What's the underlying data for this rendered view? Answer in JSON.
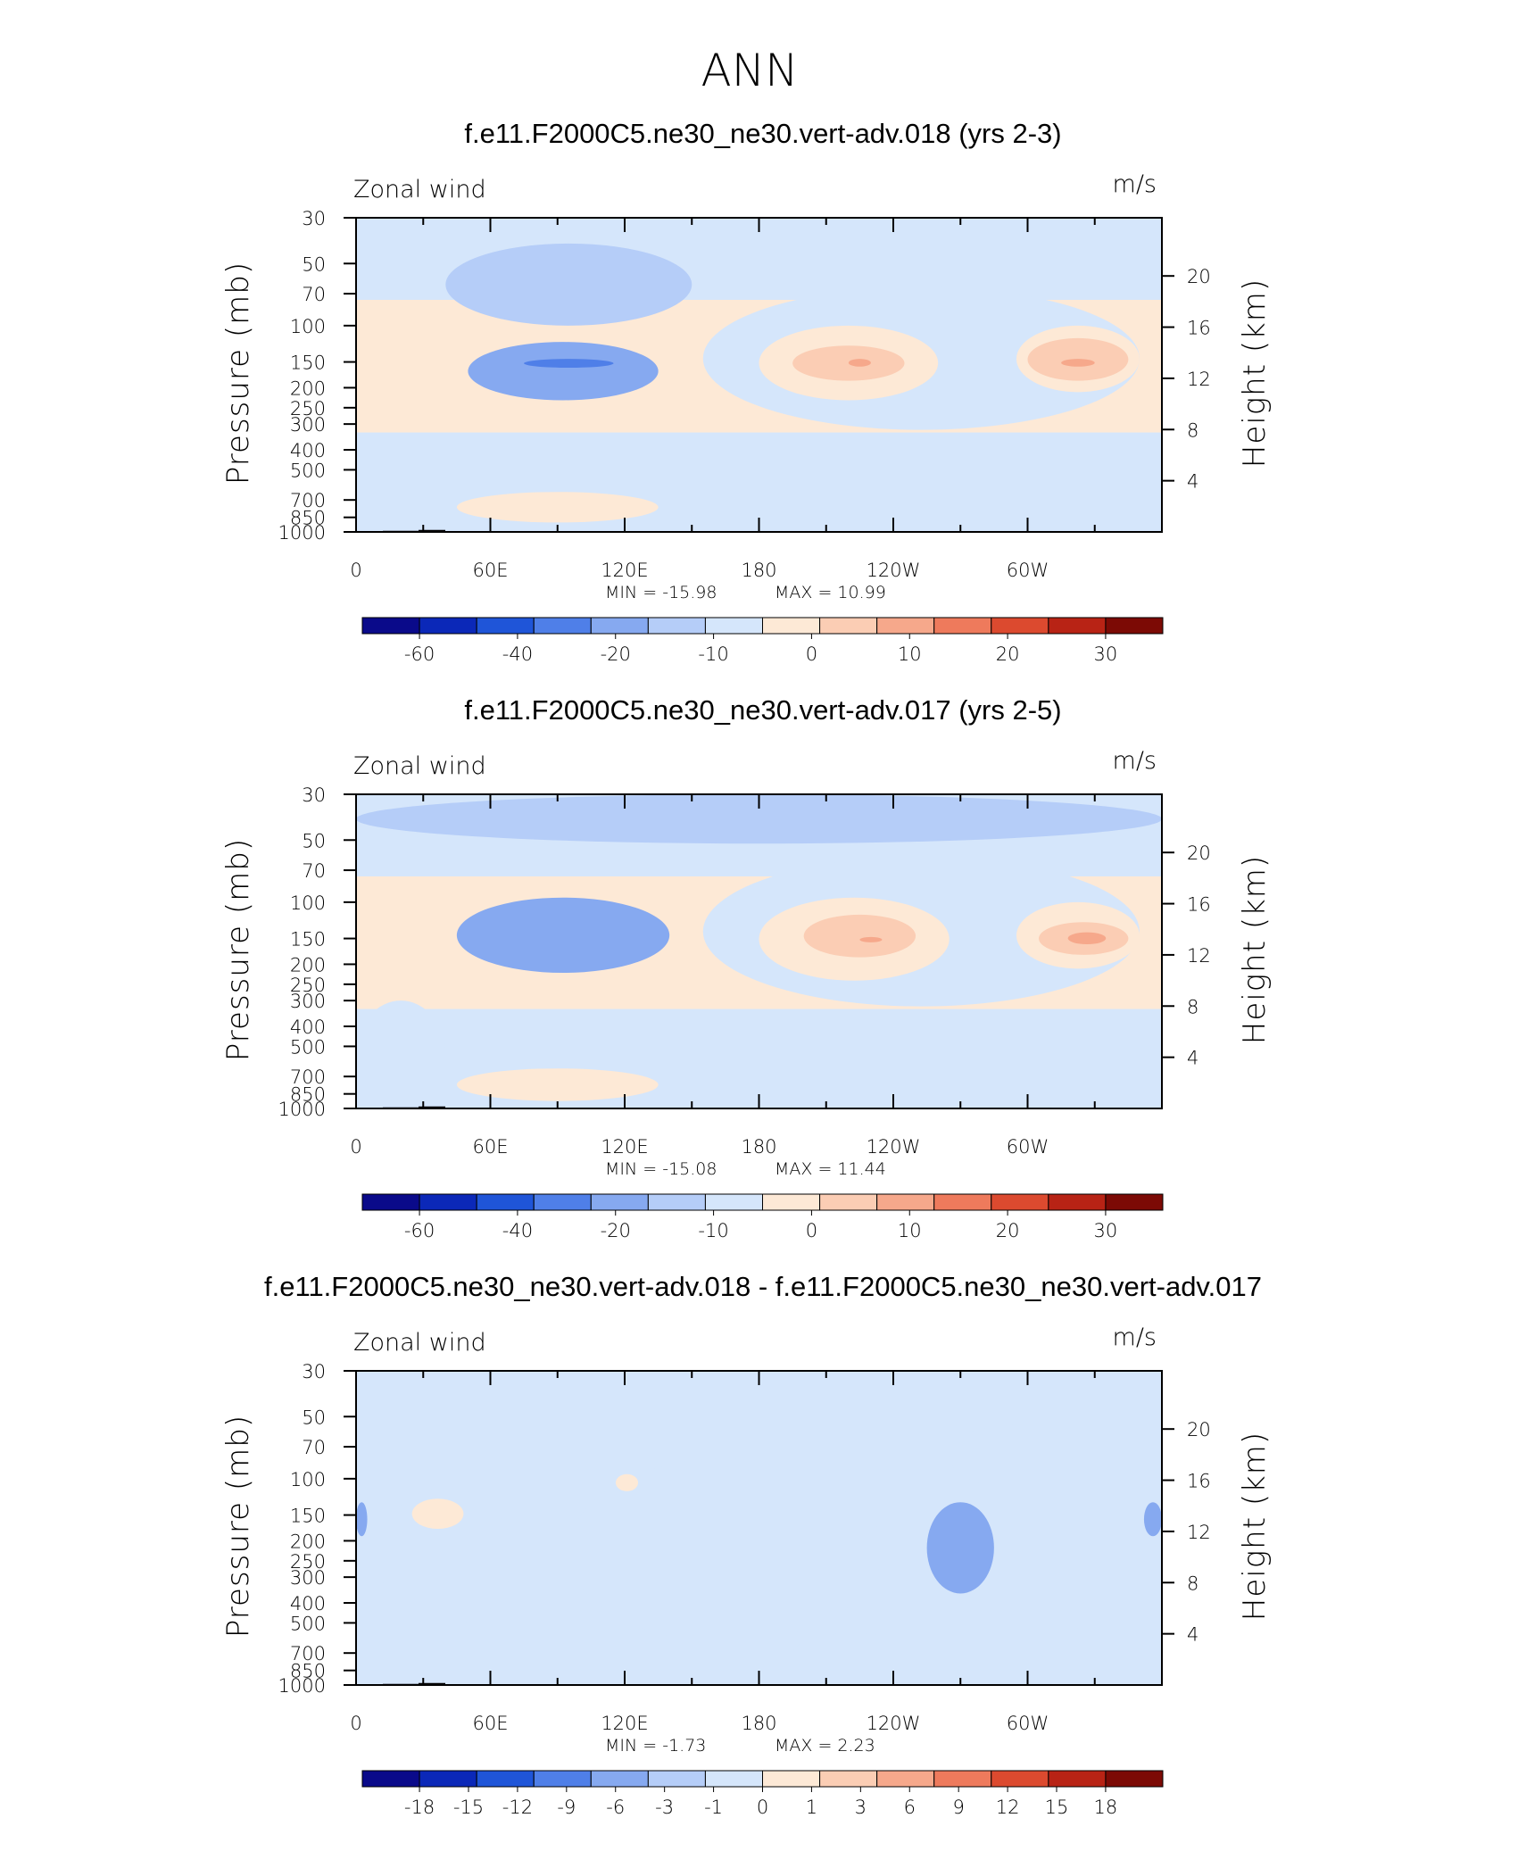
{
  "title": "ANN",
  "chart_data": [
    {
      "type": "heatmap",
      "title": "f.e11.F2000C5.ne30_ne30.vert-adv.018 (yrs 2-3)",
      "left_label": "Zonal wind",
      "right_label": "m/s",
      "xlabel": "",
      "ylabel": "Pressure (mb)",
      "ylabel_right": "Height (km)",
      "x_ticks": [
        "0",
        "60E",
        "120E",
        "180",
        "120W",
        "60W"
      ],
      "x_range": [
        0,
        360
      ],
      "y_ticks": [
        "30",
        "50",
        "70",
        "100",
        "150",
        "200",
        "250",
        "300",
        "400",
        "500",
        "700",
        "850",
        "1000"
      ],
      "y_range_mb": [
        1000,
        30
      ],
      "y_ticks_right": [
        "20",
        "16",
        "12",
        "8",
        "4"
      ],
      "min_text": "MIN = -15.98",
      "max_text": "MAX = 10.99",
      "colorbar_labels": [
        "-60",
        "-40",
        "-20",
        "-10",
        "0",
        "10",
        "20",
        "30"
      ],
      "regions": [
        {
          "level": 5,
          "lon": [
            40,
            150
          ],
          "p": [
            40,
            100
          ]
        },
        {
          "level": 4,
          "lon": [
            50,
            135
          ],
          "p": [
            120,
            230
          ]
        },
        {
          "level": 3,
          "lon": [
            75,
            115
          ],
          "p": [
            145,
            160
          ]
        },
        {
          "level": 6,
          "lon": [
            155,
            350
          ],
          "p": [
            65,
            320
          ]
        },
        {
          "level": 7,
          "lon": [
            180,
            260
          ],
          "p": [
            100,
            230
          ]
        },
        {
          "level": 8,
          "lon": [
            195,
            245
          ],
          "p": [
            125,
            185
          ]
        },
        {
          "level": 9,
          "lon": [
            220,
            230
          ],
          "p": [
            145,
            158
          ]
        },
        {
          "level": 7,
          "lon": [
            295,
            350
          ],
          "p": [
            100,
            210
          ]
        },
        {
          "level": 8,
          "lon": [
            300,
            345
          ],
          "p": [
            115,
            185
          ]
        },
        {
          "level": 9,
          "lon": [
            315,
            330
          ],
          "p": [
            145,
            158
          ]
        },
        {
          "level": 6,
          "lon": [
            0,
            40
          ],
          "p": [
            350,
            1000
          ]
        },
        {
          "level": 7,
          "lon": [
            45,
            135
          ],
          "p": [
            640,
            900
          ]
        },
        {
          "level": 6,
          "lon": [
            265,
            295
          ],
          "p": [
            880,
            1000
          ]
        }
      ]
    },
    {
      "type": "heatmap",
      "title": "f.e11.F2000C5.ne30_ne30.vert-adv.017 (yrs 2-5)",
      "left_label": "Zonal wind",
      "right_label": "m/s",
      "xlabel": "",
      "ylabel": "Pressure (mb)",
      "ylabel_right": "Height (km)",
      "x_ticks": [
        "0",
        "60E",
        "120E",
        "180",
        "120W",
        "60W"
      ],
      "x_range": [
        0,
        360
      ],
      "y_ticks": [
        "30",
        "50",
        "70",
        "100",
        "150",
        "200",
        "250",
        "300",
        "400",
        "500",
        "700",
        "850",
        "1000"
      ],
      "y_range_mb": [
        1000,
        30
      ],
      "y_ticks_right": [
        "20",
        "16",
        "12",
        "8",
        "4"
      ],
      "min_text": "MIN = -15.08",
      "max_text": "MAX = 11.44",
      "colorbar_labels": [
        "-60",
        "-40",
        "-20",
        "-10",
        "0",
        "10",
        "20",
        "30"
      ],
      "regions": [
        {
          "level": 5,
          "lon": [
            0,
            360
          ],
          "p": [
            30,
            52
          ]
        },
        {
          "level": 6,
          "lon": [
            155,
            350
          ],
          "p": [
            60,
            320
          ]
        },
        {
          "level": 4,
          "lon": [
            45,
            140
          ],
          "p": [
            95,
            220
          ]
        },
        {
          "level": 7,
          "lon": [
            180,
            265
          ],
          "p": [
            95,
            240
          ]
        },
        {
          "level": 8,
          "lon": [
            200,
            250
          ],
          "p": [
            115,
            185
          ]
        },
        {
          "level": 9,
          "lon": [
            225,
            235
          ],
          "p": [
            148,
            156
          ]
        },
        {
          "level": 7,
          "lon": [
            295,
            350
          ],
          "p": [
            100,
            210
          ]
        },
        {
          "level": 8,
          "lon": [
            305,
            345
          ],
          "p": [
            125,
            180
          ]
        },
        {
          "level": 9,
          "lon": [
            318,
            335
          ],
          "p": [
            140,
            160
          ]
        },
        {
          "level": 6,
          "lon": [
            0,
            40
          ],
          "p": [
            300,
            1000
          ]
        },
        {
          "level": 7,
          "lon": [
            45,
            135
          ],
          "p": [
            640,
            920
          ]
        },
        {
          "level": 6,
          "lon": [
            270,
            300
          ],
          "p": [
            880,
            1000
          ]
        }
      ]
    },
    {
      "type": "heatmap",
      "title": "f.e11.F2000C5.ne30_ne30.vert-adv.018 - f.e11.F2000C5.ne30_ne30.vert-adv.017",
      "left_label": "Zonal wind",
      "right_label": "m/s",
      "xlabel": "",
      "ylabel": "Pressure (mb)",
      "ylabel_right": "Height (km)",
      "x_ticks": [
        "0",
        "60E",
        "120E",
        "180",
        "120W",
        "60W"
      ],
      "x_range": [
        0,
        360
      ],
      "y_ticks": [
        "30",
        "50",
        "70",
        "100",
        "150",
        "200",
        "250",
        "300",
        "400",
        "500",
        "700",
        "850",
        "1000"
      ],
      "y_range_mb": [
        1000,
        30
      ],
      "y_ticks_right": [
        "20",
        "16",
        "12",
        "8",
        "4"
      ],
      "min_text": "MIN = -1.73",
      "max_text": "MAX = 2.23",
      "colorbar_labels": [
        "-18",
        "-15",
        "-12",
        "-9",
        "-6",
        "-3",
        "-1",
        "0",
        "1",
        "3",
        "6",
        "9",
        "12",
        "15",
        "18"
      ],
      "regions": [
        {
          "level": 6,
          "lon": [
            10,
            70
          ],
          "p": [
            110,
            520
          ]
        },
        {
          "level": 7,
          "lon": [
            25,
            48
          ],
          "p": [
            125,
            175
          ]
        },
        {
          "level": 6,
          "lon": [
            95,
            235
          ],
          "p": [
            80,
            620
          ]
        },
        {
          "level": 7,
          "lon": [
            116,
            126
          ],
          "p": [
            95,
            115
          ]
        },
        {
          "level": 6,
          "lon": [
            195,
            250
          ],
          "p": [
            560,
            900
          ]
        },
        {
          "level": 6,
          "lon": [
            265,
            320
          ],
          "p": [
            55,
            110
          ]
        },
        {
          "level": 6,
          "lon": [
            305,
            360
          ],
          "p": [
            520,
            860
          ]
        },
        {
          "level": 4,
          "lon": [
            255,
            285
          ],
          "p": [
            130,
            360
          ]
        },
        {
          "level": 4,
          "lon": [
            0,
            5
          ],
          "p": [
            130,
            190
          ]
        },
        {
          "level": 4,
          "lon": [
            352,
            360
          ],
          "p": [
            130,
            190
          ]
        }
      ]
    }
  ]
}
